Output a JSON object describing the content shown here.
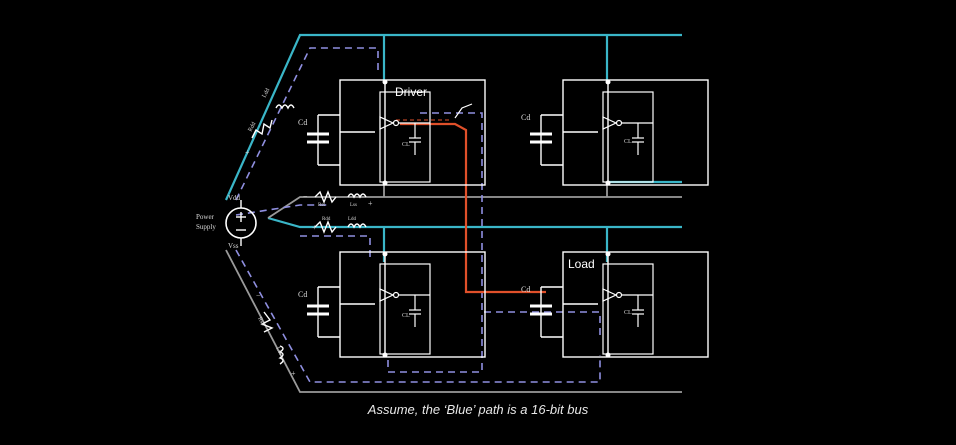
{
  "caption": "Assume, the ‘Blue’ path is a 16-bit bus",
  "labels": {
    "driver": "Driver",
    "load": "Load",
    "cd": "Cd",
    "cl": "CL",
    "vdd": "Vdd",
    "vss": "Vss",
    "power_supply_line1": "Power",
    "power_supply_line2": "Supply",
    "rdd": "Rdd",
    "ldd": "Ldd",
    "rss": "Rss",
    "lss": "Lss",
    "plus": "+",
    "minus": "−"
  },
  "colors": {
    "background": "#000000",
    "blue_path": "#3ab6c8",
    "dashed_return": "#8f8fe0",
    "signal_path": "#e0502a",
    "circuit_lines": "#ffffff"
  }
}
